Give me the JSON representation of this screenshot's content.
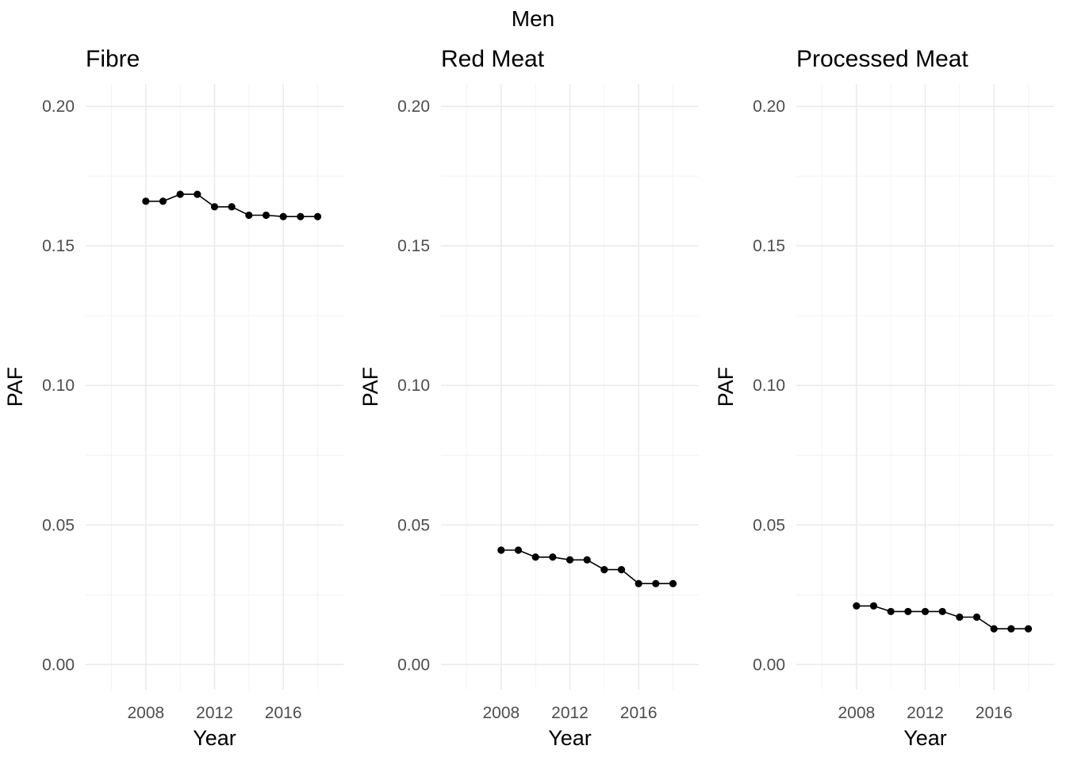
{
  "figure": {
    "title": "Men"
  },
  "chart_data": [
    {
      "type": "line",
      "title": "Fibre",
      "xlabel": "Year",
      "ylabel": "PAF",
      "xlim": [
        2004.5,
        2019.5
      ],
      "ylim": [
        -0.009,
        0.208
      ],
      "x_ticks": [
        2008,
        2012,
        2016
      ],
      "y_ticks": [
        0.0,
        0.05,
        0.1,
        0.15,
        0.2
      ],
      "grid": true,
      "x": [
        2008,
        2009,
        2010,
        2011,
        2012,
        2013,
        2014,
        2015,
        2016,
        2017,
        2018
      ],
      "values": [
        0.166,
        0.166,
        0.1685,
        0.1685,
        0.164,
        0.164,
        0.161,
        0.161,
        0.1605,
        0.1605,
        0.1605
      ]
    },
    {
      "type": "line",
      "title": "Red Meat",
      "xlabel": "Year",
      "ylabel": "PAF",
      "xlim": [
        2004.5,
        2019.5
      ],
      "ylim": [
        -0.009,
        0.208
      ],
      "x_ticks": [
        2008,
        2012,
        2016
      ],
      "y_ticks": [
        0.0,
        0.05,
        0.1,
        0.15,
        0.2
      ],
      "grid": true,
      "x": [
        2008,
        2009,
        2010,
        2011,
        2012,
        2013,
        2014,
        2015,
        2016,
        2017,
        2018
      ],
      "values": [
        0.041,
        0.041,
        0.0385,
        0.0385,
        0.0375,
        0.0375,
        0.034,
        0.034,
        0.029,
        0.029,
        0.029
      ]
    },
    {
      "type": "line",
      "title": "Processed Meat",
      "xlabel": "Year",
      "ylabel": "PAF",
      "xlim": [
        2004.5,
        2019.5
      ],
      "ylim": [
        -0.009,
        0.208
      ],
      "x_ticks": [
        2008,
        2012,
        2016
      ],
      "y_ticks": [
        0.0,
        0.05,
        0.1,
        0.15,
        0.2
      ],
      "grid": true,
      "x": [
        2008,
        2009,
        2010,
        2011,
        2012,
        2013,
        2014,
        2015,
        2016,
        2017,
        2018
      ],
      "values": [
        0.021,
        0.021,
        0.019,
        0.019,
        0.019,
        0.019,
        0.017,
        0.017,
        0.0128,
        0.0128,
        0.0128
      ]
    }
  ]
}
